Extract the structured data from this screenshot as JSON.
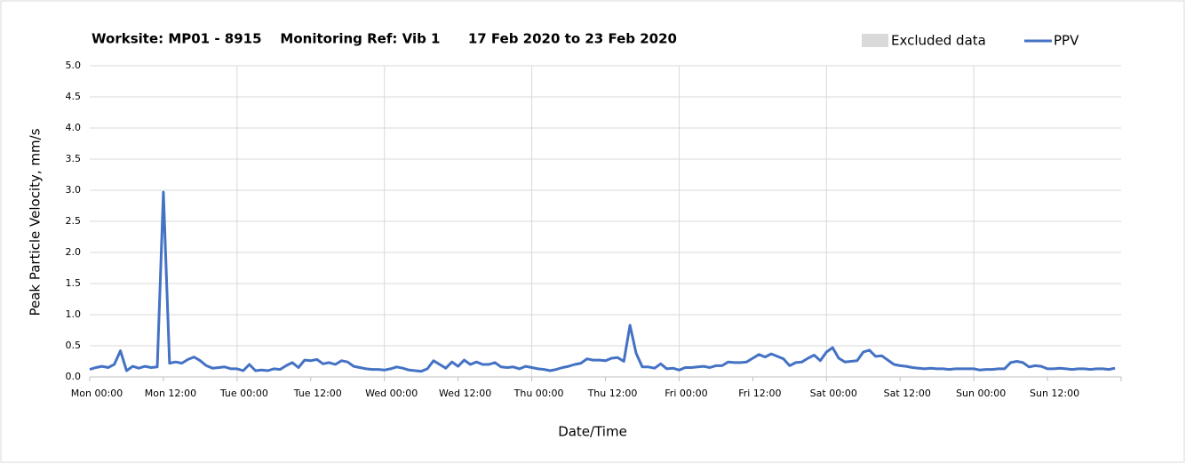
{
  "chart_data": {
    "type": "line",
    "title": "Worksite: MP01 - 8915    Monitoring Ref: Vib 1      17 Feb 2020 to 23 Feb 2020",
    "x_label": "Date/Time",
    "y_label": "Peak Particle Velocity, mm/s",
    "excluded_data": {
      "name": "Excluded data",
      "color": "#d9d9d9"
    },
    "xlim": [
      0,
      168
    ],
    "xticks": [
      {
        "value": 0,
        "label": "Mon 00:00"
      },
      {
        "value": 12,
        "label": "Mon 12:00"
      },
      {
        "value": 24,
        "label": "Tue 00:00"
      },
      {
        "value": 36,
        "label": "Tue 12:00"
      },
      {
        "value": 48,
        "label": "Wed 00:00"
      },
      {
        "value": 60,
        "label": "Wed 12:00"
      },
      {
        "value": 72,
        "label": "Thu 00:00"
      },
      {
        "value": 84,
        "label": "Thu 12:00"
      },
      {
        "value": 96,
        "label": "Fri 00:00"
      },
      {
        "value": 108,
        "label": "Fri 12:00"
      },
      {
        "value": 120,
        "label": "Sat 00:00"
      },
      {
        "value": 132,
        "label": "Sat 12:00"
      },
      {
        "value": 144,
        "label": "Sun 00:00"
      },
      {
        "value": 156,
        "label": "Sun 12:00"
      }
    ],
    "ylim": [
      0,
      5
    ],
    "yticks": [
      {
        "value": 0,
        "label": "0.0"
      },
      {
        "value": 0.5,
        "label": "0.5"
      },
      {
        "value": 1,
        "label": "1.0"
      },
      {
        "value": 1.5,
        "label": "1.5"
      },
      {
        "value": 2,
        "label": "2.0"
      },
      {
        "value": 2.5,
        "label": "2.5"
      },
      {
        "value": 3,
        "label": "3.0"
      },
      {
        "value": 3.5,
        "label": "3.5"
      },
      {
        "value": 4,
        "label": "4.0"
      },
      {
        "value": 4.5,
        "label": "4.5"
      },
      {
        "value": 5,
        "label": "5.0"
      }
    ],
    "grid": true,
    "x": [
      0,
      1,
      2,
      3,
      4,
      5,
      6,
      7,
      8,
      9,
      10,
      11,
      12,
      13,
      14,
      15,
      16,
      17,
      18,
      19,
      20,
      21,
      22,
      23,
      24,
      25,
      26,
      27,
      28,
      29,
      30,
      31,
      32,
      33,
      34,
      35,
      36,
      37,
      38,
      39,
      40,
      41,
      42,
      43,
      44,
      45,
      46,
      47,
      48,
      49,
      50,
      51,
      52,
      53,
      54,
      55,
      56,
      57,
      58,
      59,
      60,
      61,
      62,
      63,
      64,
      65,
      66,
      67,
      68,
      69,
      70,
      71,
      72,
      73,
      74,
      75,
      76,
      77,
      78,
      79,
      80,
      81,
      82,
      83,
      84,
      85,
      86,
      87,
      88,
      89,
      90,
      91,
      92,
      93,
      94,
      95,
      96,
      97,
      98,
      99,
      100,
      101,
      102,
      103,
      104,
      105,
      106,
      107,
      108,
      109,
      110,
      111,
      112,
      113,
      114,
      115,
      116,
      117,
      118,
      119,
      120,
      121,
      122,
      123,
      124,
      125,
      126,
      127,
      128,
      129,
      130,
      131,
      132,
      133,
      134,
      135,
      136,
      137,
      138,
      139,
      140,
      141,
      142,
      143,
      144,
      145,
      146,
      147,
      148,
      149,
      150,
      151,
      152,
      153,
      154,
      155,
      156,
      157,
      158,
      159,
      160,
      161,
      162,
      163,
      164,
      165,
      166,
      167
    ],
    "series": [
      {
        "name": "PPV",
        "color": "#4472c4",
        "values": [
          0.12,
          0.15,
          0.17,
          0.15,
          0.2,
          0.42,
          0.1,
          0.17,
          0.14,
          0.17,
          0.15,
          0.16,
          2.97,
          0.22,
          0.24,
          0.22,
          0.28,
          0.32,
          0.26,
          0.18,
          0.14,
          0.15,
          0.16,
          0.13,
          0.13,
          0.1,
          0.2,
          0.1,
          0.11,
          0.1,
          0.13,
          0.12,
          0.18,
          0.23,
          0.15,
          0.27,
          0.26,
          0.28,
          0.21,
          0.23,
          0.2,
          0.26,
          0.24,
          0.17,
          0.15,
          0.13,
          0.12,
          0.12,
          0.11,
          0.13,
          0.16,
          0.14,
          0.11,
          0.1,
          0.09,
          0.13,
          0.26,
          0.2,
          0.14,
          0.24,
          0.17,
          0.27,
          0.2,
          0.24,
          0.2,
          0.2,
          0.23,
          0.16,
          0.15,
          0.16,
          0.13,
          0.17,
          0.15,
          0.13,
          0.12,
          0.1,
          0.12,
          0.15,
          0.17,
          0.2,
          0.22,
          0.29,
          0.27,
          0.27,
          0.26,
          0.3,
          0.31,
          0.25,
          0.83,
          0.38,
          0.16,
          0.16,
          0.14,
          0.21,
          0.13,
          0.14,
          0.11,
          0.15,
          0.15,
          0.16,
          0.17,
          0.15,
          0.18,
          0.18,
          0.24,
          0.23,
          0.23,
          0.24,
          0.3,
          0.36,
          0.32,
          0.37,
          0.33,
          0.29,
          0.18,
          0.23,
          0.24,
          0.3,
          0.35,
          0.26,
          0.4,
          0.47,
          0.3,
          0.24,
          0.25,
          0.26,
          0.4,
          0.43,
          0.33,
          0.34,
          0.27,
          0.2,
          0.18,
          0.17,
          0.15,
          0.14,
          0.13,
          0.14,
          0.13,
          0.13,
          0.12,
          0.13,
          0.13,
          0.13,
          0.13,
          0.11,
          0.12,
          0.12,
          0.13,
          0.13,
          0.23,
          0.25,
          0.23,
          0.16,
          0.18,
          0.17,
          0.13,
          0.13,
          0.14,
          0.13,
          0.12,
          0.13,
          0.13,
          0.12,
          0.13,
          0.13,
          0.12,
          0.14
        ]
      }
    ]
  }
}
